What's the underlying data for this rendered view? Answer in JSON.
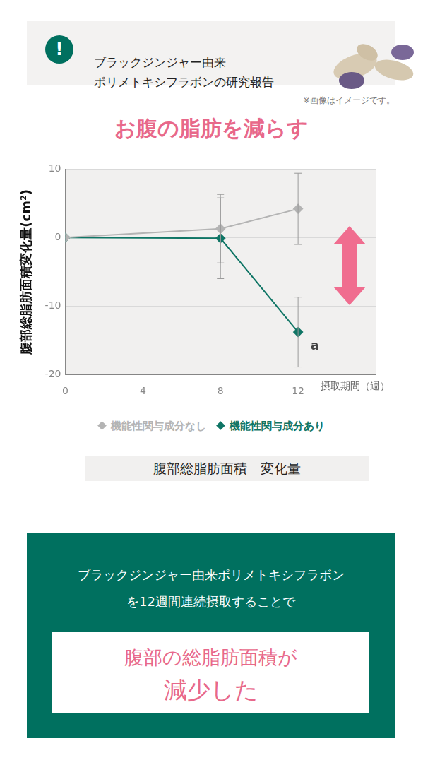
{
  "notice": {
    "icon": "!",
    "lines": [
      "ブラックジンジャー由来",
      "ポリメトキシフラボンの研究報告"
    ]
  },
  "image_note": "※画像はイメージです。",
  "headline": "お腹の脂肪を減らす",
  "chart_data": {
    "type": "line",
    "x_label": "摂取期間（週）",
    "y_label": "腹部総脂肪面積変化量(cm²)",
    "x": [
      0,
      8,
      12
    ],
    "xlim": [
      0,
      16
    ],
    "xticks": [
      0,
      4,
      8,
      12
    ],
    "ylim": [
      -20,
      10
    ],
    "yticks": [
      -20,
      -10,
      0,
      10
    ],
    "grid": true,
    "legend": "bottom",
    "series": [
      {
        "name": "機能性関与成分なし",
        "color": "#b4b4b4",
        "marker": "diamond",
        "values": [
          0,
          1.3,
          4.2
        ],
        "errors": [
          0,
          5.0,
          5.2
        ]
      },
      {
        "name": "機能性関与成分あり",
        "color": "#0f7565",
        "marker": "diamond",
        "values": [
          0,
          -0.1,
          -13.8
        ],
        "errors": [
          0,
          5.9,
          5.1
        ]
      }
    ],
    "annotations": [
      {
        "text": "a",
        "x": 12,
        "y": -13.8
      }
    ],
    "caption": "腹部総脂肪面積　変化量"
  },
  "summary": {
    "lines": [
      "ブラックジンジャー由来ポリメトキシフラボン",
      "を12週間連続摂取することで"
    ],
    "result_lines": [
      "腹部の総脂肪面積が",
      "減少した"
    ]
  }
}
